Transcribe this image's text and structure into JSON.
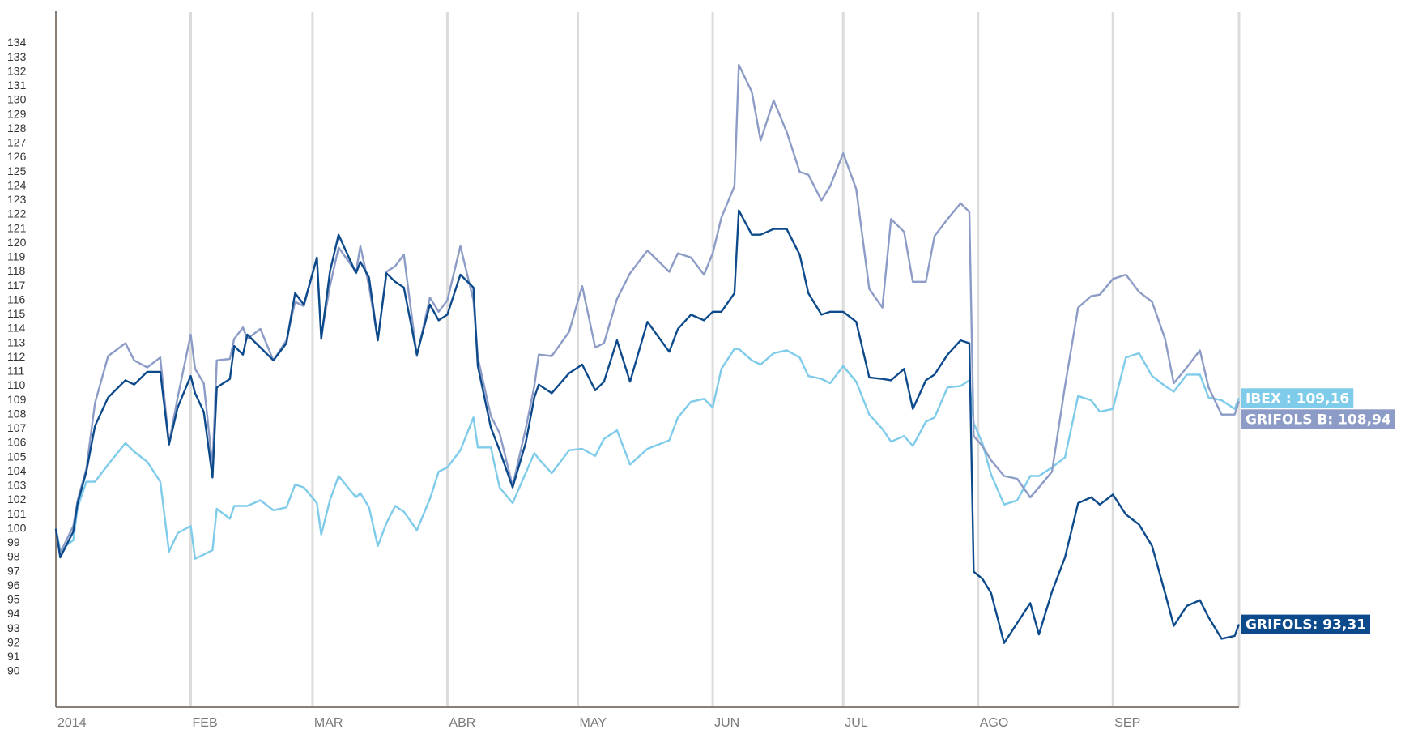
{
  "chart_data": {
    "type": "line",
    "x": [
      0,
      1,
      4,
      5,
      7,
      9,
      12,
      16,
      18,
      21,
      24,
      26,
      28,
      31,
      32,
      34,
      36,
      37,
      40,
      41,
      43,
      44,
      47,
      50,
      53,
      55,
      57,
      60,
      61,
      63,
      65,
      69,
      70,
      72,
      74,
      76,
      78,
      80,
      83,
      86,
      88,
      90,
      93,
      96,
      97,
      100,
      102,
      105,
      108,
      110,
      111,
      114,
      118,
      121,
      124,
      126,
      129,
      132,
      136,
      141,
      143,
      146,
      149,
      151,
      153,
      156,
      157,
      160,
      162,
      165,
      168,
      171,
      173,
      176,
      178,
      181,
      184,
      187,
      190,
      192,
      195,
      197,
      200,
      202,
      205,
      208,
      210,
      211,
      213,
      215,
      218,
      221,
      224,
      226,
      229,
      232,
      235,
      238,
      240,
      243,
      246,
      249,
      252,
      255,
      257,
      260,
      263,
      265,
      268,
      271,
      272
    ],
    "xlim": [
      0,
      272
    ],
    "xticks": [
      {
        "value": 0,
        "label": "2014"
      },
      {
        "value": 31,
        "label": "FEB"
      },
      {
        "value": 59,
        "label": "MAR"
      },
      {
        "value": 90,
        "label": "ABR"
      },
      {
        "value": 120,
        "label": "MAY"
      },
      {
        "value": 151,
        "label": "JUN"
      },
      {
        "value": 181,
        "label": "JUL"
      },
      {
        "value": 212,
        "label": "AGO"
      },
      {
        "value": 243,
        "label": "SEP"
      }
    ],
    "ylim": [
      87.5,
      136.3
    ],
    "yticks": [
      90,
      91,
      92,
      93,
      94,
      95,
      96,
      97,
      98,
      99,
      100,
      101,
      102,
      103,
      104,
      105,
      106,
      107,
      108,
      109,
      110,
      111,
      112,
      113,
      114,
      115,
      116,
      117,
      118,
      119,
      120,
      121,
      122,
      123,
      124,
      125,
      126,
      127,
      128,
      129,
      130,
      131,
      132,
      133,
      134
    ],
    "grid": true,
    "series": [
      {
        "name": "IBEX : 109,16",
        "color": "#7ecbea",
        "values": [
          100,
          98.5,
          99.2,
          101.5,
          103.3,
          103.3,
          104.5,
          106,
          105.4,
          104.7,
          103.3,
          98.4,
          99.7,
          100.2,
          97.9,
          98.2,
          98.5,
          101.4,
          100.7,
          101.6,
          101.6,
          101.6,
          102,
          101.3,
          101.5,
          103.1,
          102.9,
          101.8,
          99.6,
          102,
          103.7,
          102.2,
          102.5,
          101.5,
          98.8,
          100.4,
          101.6,
          101.2,
          99.9,
          102.1,
          104,
          104.3,
          105.5,
          107.8,
          105.7,
          105.7,
          102.9,
          101.8,
          103.9,
          105.3,
          104.9,
          103.9,
          105.5,
          105.6,
          105.1,
          106.3,
          106.9,
          104.5,
          105.6,
          106.2,
          107.8,
          108.9,
          109.1,
          108.5,
          111.2,
          112.6,
          112.6,
          111.8,
          111.5,
          112.3,
          112.5,
          112,
          110.7,
          110.5,
          110.2,
          111.4,
          110.3,
          108,
          107,
          106.1,
          106.5,
          105.8,
          107.5,
          107.8,
          109.9,
          110,
          110.4,
          107.4,
          106,
          103.8,
          101.7,
          102,
          103.7,
          103.7,
          104.3,
          105,
          109.3,
          109,
          108.2,
          108.4,
          112,
          112.3,
          110.7,
          110,
          109.6,
          110.8,
          110.8,
          109.2,
          109,
          108.4,
          109.16
        ]
      },
      {
        "name": "GRIFOLS B: 108,94",
        "color": "#8c9cc6",
        "values": [
          100,
          98.3,
          100.2,
          102,
          104.2,
          108.8,
          112.1,
          113,
          111.8,
          111.3,
          112,
          106,
          109.2,
          113.6,
          111.2,
          110.2,
          104.4,
          111.8,
          111.9,
          113.3,
          114.1,
          113.3,
          114,
          111.8,
          113.2,
          115.9,
          115.6,
          119,
          113.5,
          117,
          119.7,
          118,
          119.8,
          117,
          113.2,
          118,
          118.4,
          119.2,
          112.1,
          116.2,
          115.2,
          116,
          119.8,
          116,
          112,
          107.9,
          106.7,
          103,
          107,
          110,
          112.2,
          112.1,
          113.8,
          117,
          112.7,
          113,
          116.1,
          117.9,
          119.5,
          118,
          119.3,
          119,
          117.8,
          119.3,
          121.8,
          124,
          132.5,
          130.6,
          127.2,
          130,
          127.8,
          125,
          124.8,
          123,
          124,
          126.3,
          123.8,
          116.8,
          115.5,
          121.7,
          120.8,
          117.3,
          117.3,
          120.5,
          121.7,
          122.8,
          122.2,
          106.5,
          105.8,
          104.8,
          103.7,
          103.5,
          102.2,
          102.9,
          104,
          110,
          115.5,
          116.3,
          116.4,
          117.5,
          117.8,
          116.6,
          115.9,
          113.3,
          110.2,
          111.3,
          112.5,
          109.9,
          108,
          108,
          108.94
        ]
      },
      {
        "name": "GRIFOLS: 93,31",
        "color": "#0d4a8c",
        "values": [
          100,
          98,
          99.8,
          101.8,
          104,
          107.2,
          109.2,
          110.4,
          110.1,
          111,
          111,
          105.9,
          108.5,
          110.7,
          109.5,
          108.2,
          103.6,
          109.9,
          110.5,
          112.8,
          112.2,
          113.6,
          112.7,
          111.8,
          113,
          116.5,
          115.7,
          119,
          113.3,
          118,
          120.6,
          117.9,
          118.7,
          117.6,
          113.2,
          117.9,
          117.3,
          116.9,
          112.2,
          115.7,
          114.6,
          115,
          117.8,
          116.9,
          111.4,
          107.1,
          105.5,
          102.9,
          106,
          109.2,
          110.1,
          109.5,
          110.9,
          111.5,
          109.7,
          110.3,
          113.2,
          110.3,
          114.5,
          112.4,
          114,
          115,
          114.6,
          115.2,
          115.2,
          116.5,
          122.3,
          120.6,
          120.6,
          121,
          121,
          119.2,
          116.5,
          115,
          115.2,
          115.2,
          114.5,
          110.6,
          110.5,
          110.4,
          111.2,
          108.4,
          110.4,
          110.8,
          112.2,
          113.2,
          113,
          97,
          96.5,
          95.5,
          92,
          93.4,
          94.8,
          92.6,
          95.6,
          98,
          101.8,
          102.2,
          101.7,
          102.4,
          101,
          100.3,
          98.8,
          95.5,
          93.2,
          94.6,
          95,
          93.8,
          92.3,
          92.5,
          93.31
        ]
      }
    ]
  }
}
